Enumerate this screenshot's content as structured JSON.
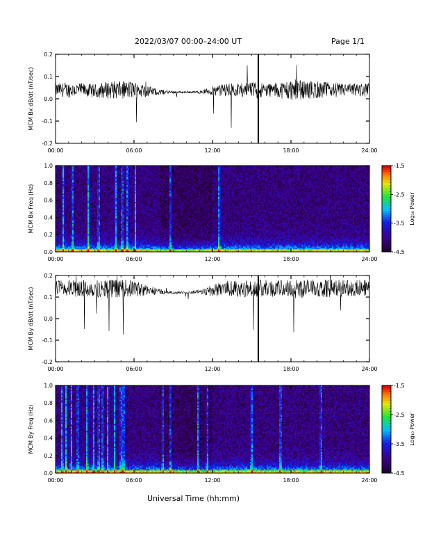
{
  "header": {
    "title": "2022/03/07  00:00–24:00 UT",
    "page": "Page 1/1"
  },
  "bottom_xlabel": "Universal Time (hh:mm)",
  "chart_data": [
    {
      "type": "line",
      "ylabel": "MCM Bx dB/dt (nT/sec)",
      "ylim": [
        -0.2,
        0.2
      ],
      "yticks": [
        "-0.2",
        "-0.1",
        "0.0",
        "0.1",
        "0.2"
      ],
      "xlim": [
        0,
        24
      ],
      "xticks": [
        "00:00",
        "06:00",
        "12:00",
        "18:00",
        "24:00"
      ],
      "series": [
        {
          "x": [
            0,
            1,
            2,
            3,
            4,
            5,
            6,
            7,
            8,
            9,
            10,
            11,
            12,
            13,
            14,
            15,
            15.5,
            16,
            17,
            18,
            19,
            20,
            21,
            22,
            23,
            24
          ],
          "y": [
            0.04,
            0.04,
            0.04,
            0.035,
            0.04,
            0.04,
            0.04,
            0.035,
            0.03,
            0.03,
            0.03,
            0.03,
            0.035,
            0.04,
            0.04,
            0.04,
            0.04,
            0.04,
            0.04,
            0.04,
            0.04,
            0.04,
            0.04,
            0.04,
            0.04,
            0.04
          ],
          "amplitude": [
            0.03,
            0.035,
            0.03,
            0.03,
            0.04,
            0.04,
            0.04,
            0.025,
            0.012,
            0.006,
            0.004,
            0.006,
            0.02,
            0.03,
            0.03,
            0.035,
            0.04,
            0.03,
            0.035,
            0.05,
            0.04,
            0.04,
            0.035,
            0.03,
            0.03,
            0.03
          ]
        }
      ]
    },
    {
      "type": "heatmap",
      "ylabel": "MCM Bx Freq (Hz)",
      "ylim": [
        0,
        1
      ],
      "yticks": [
        "0.0",
        "0.2",
        "0.4",
        "0.6",
        "0.8",
        "1.0"
      ],
      "xlim": [
        0,
        24
      ],
      "xticks": [
        "00:00",
        "06:00",
        "12:00",
        "18:00",
        "24:00"
      ],
      "colorbar": {
        "label": "Log₁₀ Power",
        "range": [
          -4.5,
          -1.5
        ],
        "ticks": [
          "-1.5",
          "-2.5",
          "-3.5",
          "-4.5"
        ]
      },
      "bright_lines_hours": [
        0.6,
        1.3,
        2.5,
        3.3,
        4.6,
        5.1,
        5.5,
        6.1,
        8.8,
        12.5
      ]
    },
    {
      "type": "line",
      "ylabel": "MCM By dB/dt (nT/sec)",
      "ylim": [
        -0.2,
        0.2
      ],
      "yticks": [
        "-0.2",
        "-0.1",
        "0.0",
        "0.1",
        "0.2"
      ],
      "xlim": [
        0,
        24
      ],
      "xticks": [
        "00:00",
        "06:00",
        "12:00",
        "18:00",
        "24:00"
      ],
      "series": [
        {
          "x": [
            0,
            1,
            2,
            3,
            4,
            5,
            6,
            7,
            8,
            9,
            10,
            11,
            12,
            13,
            14,
            15,
            15.5,
            16,
            17,
            18,
            19,
            20,
            21,
            22,
            23,
            24
          ],
          "y": [
            0.14,
            0.14,
            0.14,
            0.14,
            0.14,
            0.14,
            0.14,
            0.13,
            0.125,
            0.12,
            0.12,
            0.125,
            0.13,
            0.14,
            0.14,
            0.14,
            0.14,
            0.14,
            0.14,
            0.14,
            0.14,
            0.14,
            0.14,
            0.14,
            0.14,
            0.14
          ],
          "amplitude": [
            0.04,
            0.04,
            0.04,
            0.04,
            0.045,
            0.04,
            0.04,
            0.025,
            0.012,
            0.006,
            0.005,
            0.01,
            0.03,
            0.035,
            0.04,
            0.04,
            0.04,
            0.04,
            0.04,
            0.045,
            0.045,
            0.04,
            0.04,
            0.04,
            0.04,
            0.04
          ]
        }
      ]
    },
    {
      "type": "heatmap",
      "ylabel": "MCM By Freq (Hz)",
      "ylim": [
        0,
        1
      ],
      "yticks": [
        "0.0",
        "0.2",
        "0.4",
        "0.6",
        "0.8",
        "1.0"
      ],
      "xlim": [
        0,
        24
      ],
      "xticks": [
        "00:00",
        "06:00",
        "12:00",
        "18:00",
        "24:00"
      ],
      "colorbar": {
        "label": "Log₁₀ Power",
        "range": [
          -4.5,
          -1.5
        ],
        "ticks": [
          "-1.5",
          "-2.5",
          "-3.5",
          "-4.5"
        ]
      },
      "bright_lines_hours": [
        0.5,
        0.8,
        1.2,
        1.7,
        2.4,
        2.9,
        3.3,
        3.6,
        4.0,
        4.5,
        5.0,
        5.2,
        8.2,
        8.8,
        10.9,
        11.6,
        15.0,
        17.2,
        20.3
      ]
    }
  ]
}
